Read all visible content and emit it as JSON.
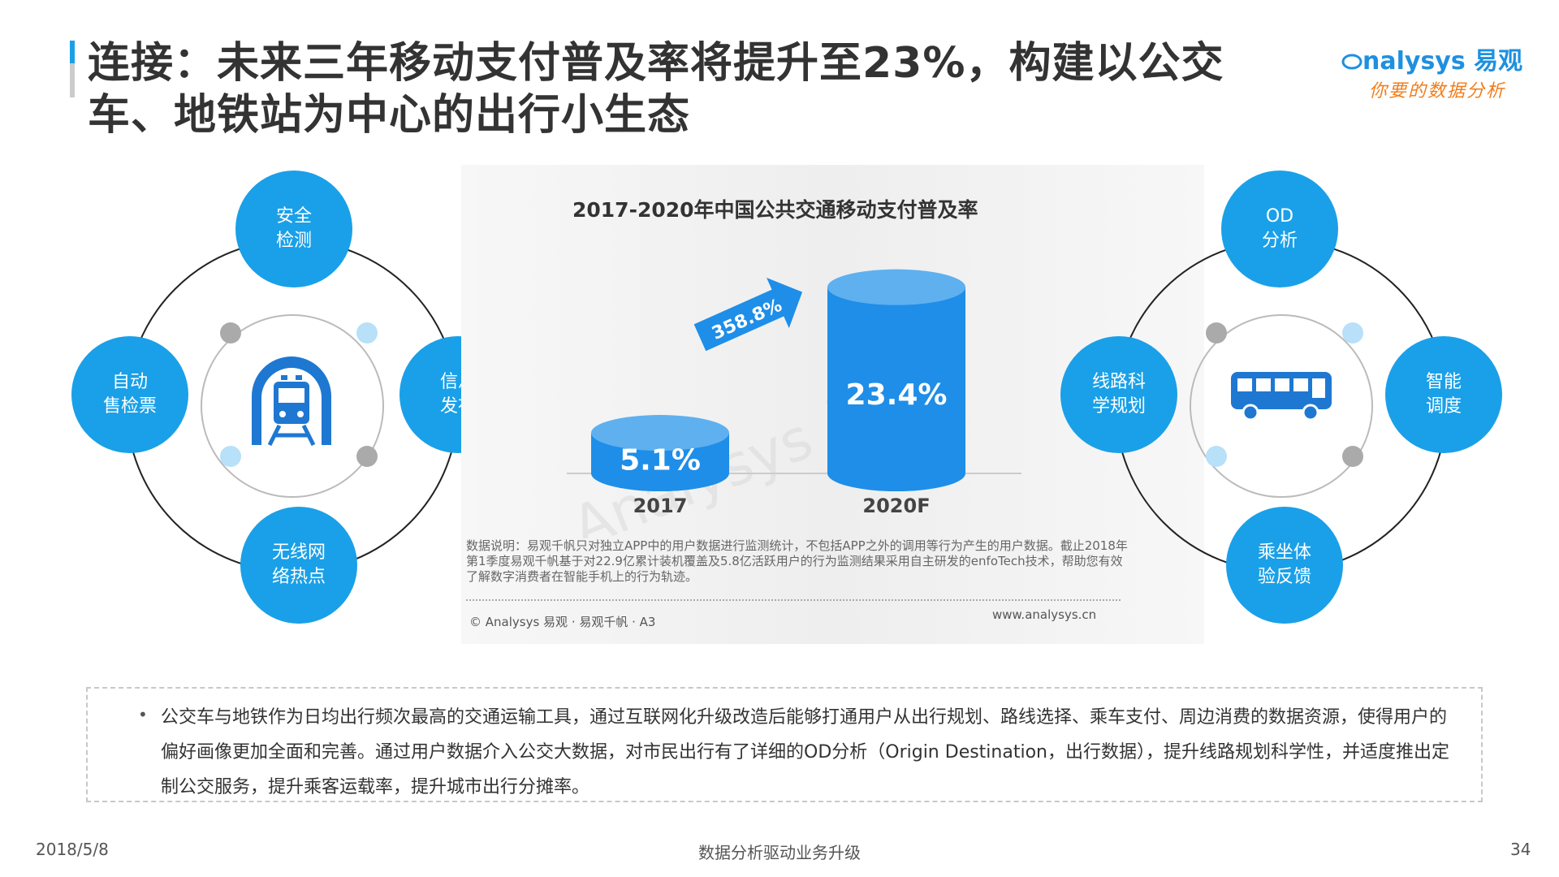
{
  "header": {
    "title_line1": "连接：未来三年移动支付普及率将提升至23%，构建以公交",
    "title_line2": "车、地铁站为中心的出行小生态",
    "logo_text": "nalysys 易观",
    "logo_slogan": "你要的数据分析"
  },
  "left_diagram": {
    "center_icon": "metro-train-icon",
    "nodes": [
      "安全\n检测",
      "信息\n发布",
      "无线网\n络热点",
      "自动\n售检票"
    ]
  },
  "right_diagram": {
    "center_icon": "bus-icon",
    "nodes": [
      "OD\n分析",
      "智能\n调度",
      "乘坐体\n验反馈",
      "线路科\n学规划"
    ]
  },
  "chart_data": {
    "type": "bar",
    "title": "2017-2020年中国公共交通移动支付普及率",
    "categories": [
      "2017",
      "2020F"
    ],
    "values": [
      5.1,
      23.4
    ],
    "value_labels": [
      "5.1%",
      "23.4%"
    ],
    "growth_label": "358.8%",
    "ylim": [
      0,
      25
    ],
    "grid": false,
    "bar_style": "cylinder",
    "colors": {
      "bar": "#1e8ee8",
      "bar_top": "#5fb0ef",
      "arrow": "#1e8ee8"
    }
  },
  "chart_panel": {
    "note": "数据说明：易观千帆只对独立APP中的用户数据进行监测统计，不包括APP之外的调用等行为产生的用户数据。截止2018年第1季度易观千帆基于对22.9亿累计装机覆盖及5.8亿活跃用户的行为监测结果采用自主研发的enfoTech技术，帮助您有效了解数字消费者在智能手机上的行为轨迹。",
    "copyright": "© Analysys 易观 · 易观千帆 · A3",
    "website": "www.analysys.cn"
  },
  "bullet": "公交车与地铁作为日均出行频次最高的交通运输工具，通过互联网化升级改造后能够打通用户从出行规划、路线选择、乘车支付、周边消费的数据资源，使得用户的偏好画像更加全面和完善。通过用户数据介入公交大数据，对市民出行有了详细的OD分析（Origin Destination，出行数据），提升线路规划科学性，并适度推出定制公交服务，提升乘客运载率，提升城市出行分摊率。",
  "footer": {
    "date": "2018/5/8",
    "tagline": "数据分析驱动业务升级",
    "page": "34"
  },
  "colors": {
    "accent": "#1aa0e8",
    "brand_orange": "#f07d1a"
  }
}
